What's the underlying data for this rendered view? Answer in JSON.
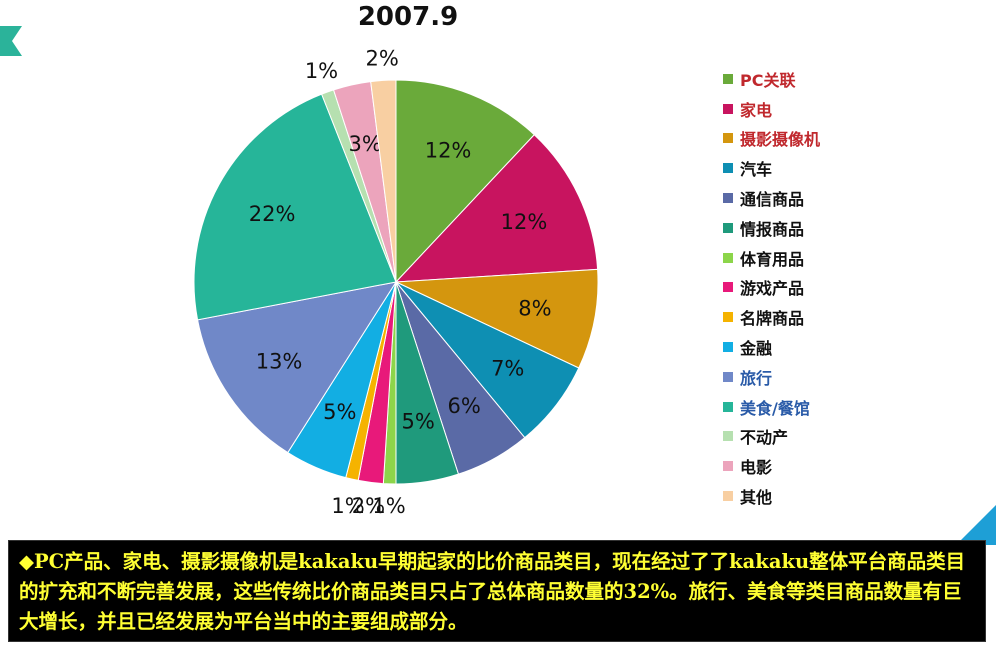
{
  "colors": {
    "note_bg": "#000000",
    "note_text": "#ffff33",
    "tab": "#2bb39a"
  },
  "chart_data": {
    "type": "pie",
    "title": "2007.9",
    "slices": [
      {
        "label": "PC关联",
        "value": 12,
        "display": "12%",
        "color": "#6aaa3a",
        "legend_color": "#c0282d"
      },
      {
        "label": "家电",
        "value": 12,
        "display": "12%",
        "color": "#c8145f",
        "legend_color": "#c0282d"
      },
      {
        "label": "摄影摄像机",
        "value": 8,
        "display": "8%",
        "color": "#d4960e",
        "legend_color": "#c0282d"
      },
      {
        "label": "汽车",
        "value": 7,
        "display": "7%",
        "color": "#0e8fb3",
        "legend_color": "#111111"
      },
      {
        "label": "通信商品",
        "value": 6,
        "display": "6%",
        "color": "#5a6aa6",
        "legend_color": "#111111"
      },
      {
        "label": "情报商品",
        "value": 5,
        "display": "5%",
        "color": "#1f9a7c",
        "legend_color": "#111111"
      },
      {
        "label": "体育用品",
        "value": 1,
        "display": "1%",
        "color": "#8cd54a",
        "legend_color": "#111111"
      },
      {
        "label": "游戏产品",
        "value": 2,
        "display": "2%",
        "color": "#e8197a",
        "legend_color": "#111111"
      },
      {
        "label": "名牌商品",
        "value": 1,
        "display": "1%",
        "color": "#f5b300",
        "legend_color": "#111111"
      },
      {
        "label": "金融",
        "value": 5,
        "display": "5%",
        "color": "#12aee3",
        "legend_color": "#111111"
      },
      {
        "label": "旅行",
        "value": 13,
        "display": "13%",
        "color": "#7088c8",
        "legend_color": "#2a5ba8"
      },
      {
        "label": "美食/餐馆",
        "value": 22,
        "display": "22%",
        "color": "#26b599",
        "legend_color": "#2a5ba8"
      },
      {
        "label": "不动产",
        "value": 1,
        "display": "1%",
        "color": "#b6e0b0",
        "legend_color": "#111111"
      },
      {
        "label": "电影",
        "value": 3,
        "display": "3%",
        "color": "#eca4bc",
        "legend_color": "#111111"
      },
      {
        "label": "其他",
        "value": 2,
        "display": "2%",
        "color": "#f8cfa2",
        "legend_color": "#111111"
      }
    ],
    "legend_position": "right"
  },
  "note": {
    "text": "◆PC产品、家电、摄影摄像机是kakaku早期起家的比价商品类目，现在经过了了kakaku整体平台商品类目的扩充和不断完善发展，这些传统比价商品类目只占了总体商品数量的32%。旅行、美食等类目商品数量有巨大增长，并且已经发展为平台当中的主要组成部分。"
  }
}
